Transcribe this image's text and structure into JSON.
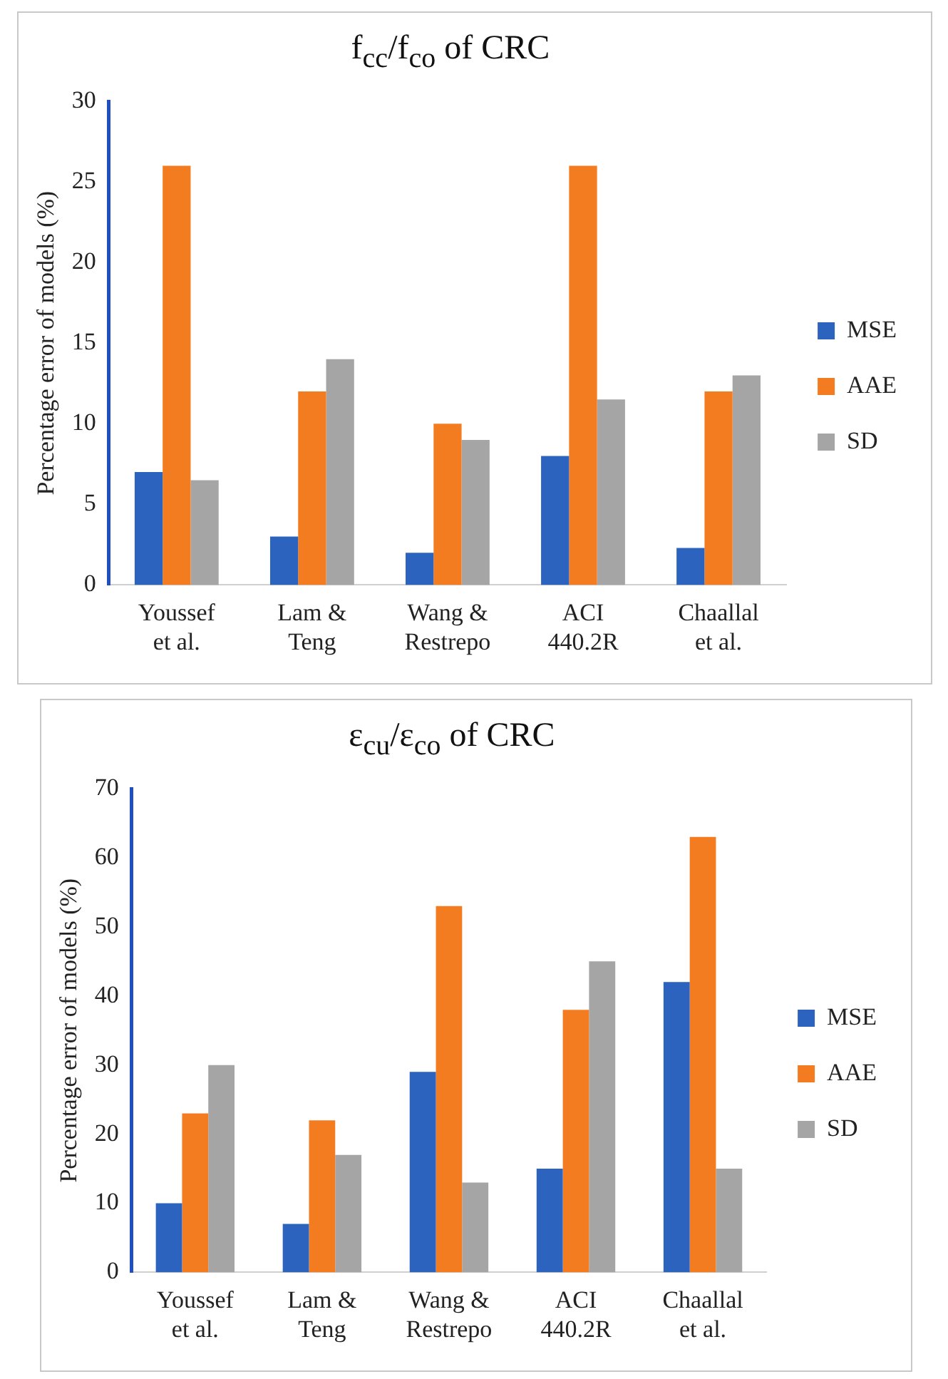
{
  "chart_data": [
    {
      "type": "bar",
      "title": "f$_{cc}$/f$_{co}$ of CRC",
      "ylabel": "Percentage error of models (%)",
      "categories": [
        "Youssef et al.",
        "Lam & Teng",
        "Wang & Restrepo",
        "ACI 440.2R",
        "Chaallal et al."
      ],
      "series": [
        {
          "name": "MSE",
          "color": "#2b63be",
          "values": [
            7,
            3,
            2,
            8,
            2.3
          ]
        },
        {
          "name": "AAE",
          "color": "#f47c20",
          "values": [
            26,
            12,
            10,
            26,
            12
          ]
        },
        {
          "name": "SD",
          "color": "#a5a5a5",
          "values": [
            6.5,
            14,
            9,
            11.5,
            13
          ]
        }
      ],
      "ylim": [
        0,
        30
      ],
      "yticks": [
        0,
        5,
        10,
        15,
        20,
        25,
        30
      ],
      "legend": "right"
    },
    {
      "type": "bar",
      "title": "ε$_{cu}$/ε$_{co}$ of CRC",
      "ylabel": "Percentage error of models (%)",
      "categories": [
        "Youssef et al.",
        "Lam & Teng",
        "Wang & Restrepo",
        "ACI 440.2R",
        "Chaallal et al."
      ],
      "series": [
        {
          "name": "MSE",
          "color": "#2b63be",
          "values": [
            10,
            7,
            29,
            15,
            42
          ]
        },
        {
          "name": "AAE",
          "color": "#f47c20",
          "values": [
            23,
            22,
            53,
            38,
            63
          ]
        },
        {
          "name": "SD",
          "color": "#a5a5a5",
          "values": [
            30,
            17,
            13,
            45,
            15
          ]
        }
      ],
      "ylim": [
        0,
        70
      ],
      "yticks": [
        0,
        10,
        20,
        30,
        40,
        50,
        60,
        70
      ],
      "legend": "right"
    }
  ]
}
